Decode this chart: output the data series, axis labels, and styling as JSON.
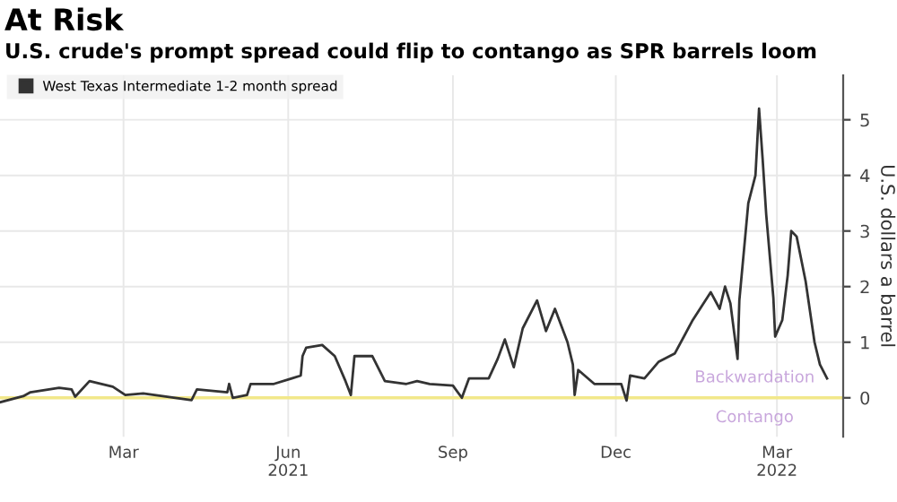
{
  "chart_data": {
    "type": "line",
    "title": "At Risk",
    "subtitle": "U.S. crude's prompt spread could flip to contango as SPR barrels loom",
    "ylabel": "U.S. dollars a barrel",
    "x": [
      "2021-01-05",
      "2021-01-18",
      "2021-01-22",
      "2021-02-07",
      "2021-02-14",
      "2021-02-16",
      "2021-02-24",
      "2021-03-09",
      "2021-03-16",
      "2021-03-26",
      "2021-04-22",
      "2021-04-25",
      "2021-05-12",
      "2021-05-13",
      "2021-05-15",
      "2021-05-23",
      "2021-05-25",
      "2021-06-07",
      "2021-06-17",
      "2021-06-22",
      "2021-06-23",
      "2021-06-25",
      "2021-07-04",
      "2021-07-11",
      "2021-07-17",
      "2021-07-20",
      "2021-07-22",
      "2021-08-01",
      "2021-08-08",
      "2021-08-20",
      "2021-08-26",
      "2021-09-02",
      "2021-09-15",
      "2021-09-20",
      "2021-09-24",
      "2021-10-05",
      "2021-10-10",
      "2021-10-14",
      "2021-10-19",
      "2021-10-24",
      "2021-11-01",
      "2021-11-06",
      "2021-11-11",
      "2021-11-18",
      "2021-11-21",
      "2021-11-22",
      "2021-11-24",
      "2021-12-03",
      "2021-12-18",
      "2021-12-21",
      "2021-12-23",
      "2021-12-31",
      "2022-01-08",
      "2022-01-17",
      "2022-01-27",
      "2022-02-06",
      "2022-02-11",
      "2022-02-14",
      "2022-02-17",
      "2022-02-21",
      "2022-02-22",
      "2022-02-27",
      "2022-03-03",
      "2022-03-05",
      "2022-03-07",
      "2022-03-09",
      "2022-03-13",
      "2022-03-14",
      "2022-03-18",
      "2022-03-21",
      "2022-03-23",
      "2022-03-26",
      "2022-03-31",
      "2022-04-05",
      "2022-04-08",
      "2022-04-12"
    ],
    "series": [
      {
        "name": "West Texas Intermediate 1-2 month spread",
        "color": "#333333",
        "values": [
          -0.08,
          0.03,
          0.1,
          0.18,
          0.15,
          0.02,
          0.3,
          0.2,
          0.05,
          0.08,
          -0.04,
          0.15,
          0.1,
          0.25,
          0.0,
          0.05,
          0.25,
          0.25,
          0.35,
          0.4,
          0.75,
          0.9,
          0.95,
          0.75,
          0.3,
          0.05,
          0.75,
          0.75,
          0.3,
          0.25,
          0.3,
          0.25,
          0.22,
          0.0,
          0.35,
          0.35,
          0.7,
          1.05,
          0.55,
          1.25,
          1.75,
          1.2,
          1.6,
          1.0,
          0.6,
          0.05,
          0.5,
          0.25,
          0.25,
          -0.05,
          0.4,
          0.35,
          0.65,
          0.8,
          1.4,
          1.9,
          1.6,
          2.0,
          1.7,
          0.7,
          1.75,
          3.5,
          4.0,
          5.2,
          4.3,
          3.3,
          1.8,
          1.1,
          1.4,
          2.2,
          3.0,
          2.9,
          2.1,
          1.0,
          0.6,
          0.35
        ]
      }
    ],
    "xlim": [
      "2021-01-05",
      "2022-04-21"
    ],
    "xticks": [
      {
        "value": "2021-03-15",
        "label": "Mar"
      },
      {
        "value": "2021-06-15",
        "label": "Jun\n2021"
      },
      {
        "value": "2021-09-15",
        "label": "Sep"
      },
      {
        "value": "2021-12-15",
        "label": "Dec"
      },
      {
        "value": "2022-03-15",
        "label": "Mar\n2022"
      }
    ],
    "ylim": [
      -0.7,
      5.8
    ],
    "yticks": [
      0,
      1,
      2,
      3,
      4,
      5
    ],
    "ref_lines": [
      {
        "axis": "y",
        "value": 0,
        "color": "#f2e88a"
      }
    ],
    "annotations": [
      "Backwardation",
      "Contango"
    ],
    "grid": true,
    "legend": "top left",
    "marker": "none",
    "line_style": "solid"
  }
}
